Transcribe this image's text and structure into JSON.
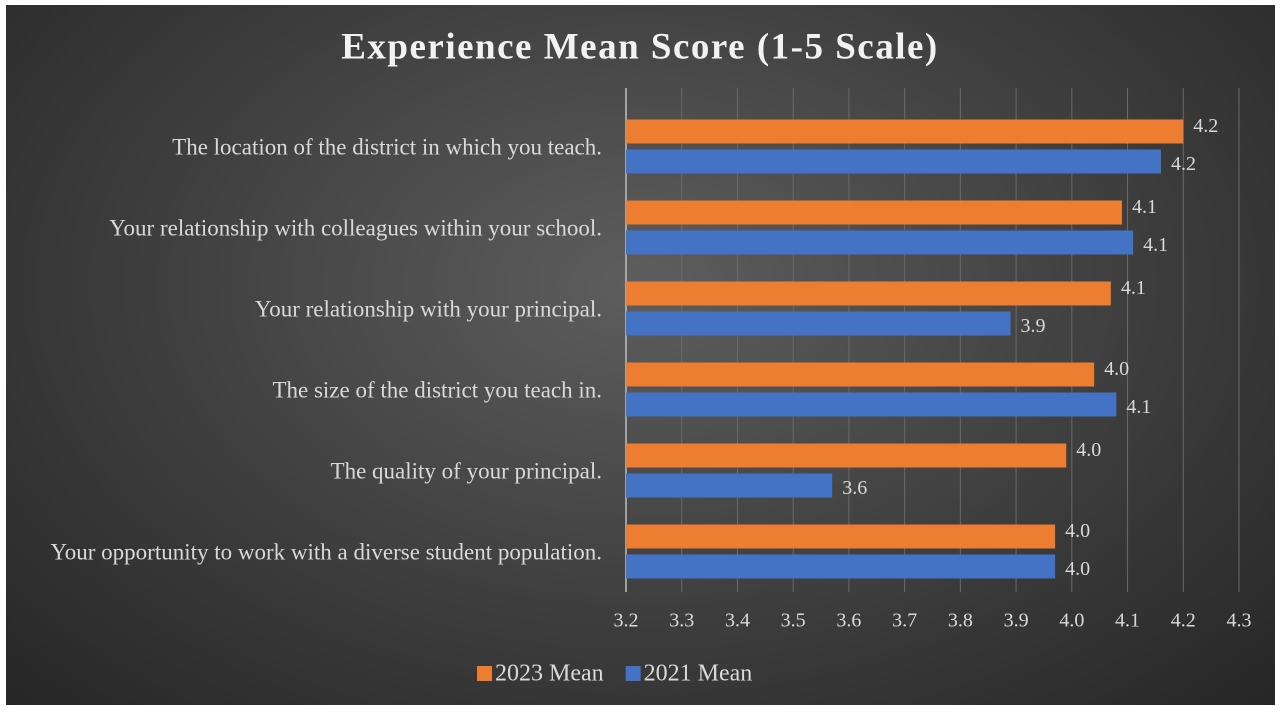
{
  "chart_data": {
    "type": "hbar",
    "title": "Experience Mean Score (1-5 Scale)",
    "categories": [
      "The location of the district in which you teach.",
      "Your relationship with colleagues within your school.",
      "Your relationship with your principal.",
      "The size of the district you teach in.",
      "The quality of your principal.",
      "Your opportunity to work with a diverse student population."
    ],
    "series": [
      {
        "name": "2023 Mean",
        "color": "#ed7d31",
        "values": [
          4.2,
          4.09,
          4.07,
          4.04,
          3.99,
          3.97
        ],
        "value_labels": [
          "4.2",
          "4.1",
          "4.1",
          "4.0",
          "4.0",
          "4.0"
        ]
      },
      {
        "name": "2021 Mean",
        "color": "#4472c4",
        "values": [
          4.16,
          4.11,
          3.89,
          4.08,
          3.57,
          3.97
        ],
        "value_labels": [
          "4.2",
          "4.1",
          "3.9",
          "4.1",
          "3.6",
          "4.0"
        ]
      }
    ],
    "xlim": [
      3.2,
      4.3
    ],
    "xticks": [
      3.2,
      3.3,
      3.4,
      3.5,
      3.6,
      3.7,
      3.8,
      3.9,
      {
        "value": 4,
        "label": "4.0"
      },
      4.1,
      4.2,
      4.3
    ],
    "grid": true,
    "legend": "bottom"
  }
}
